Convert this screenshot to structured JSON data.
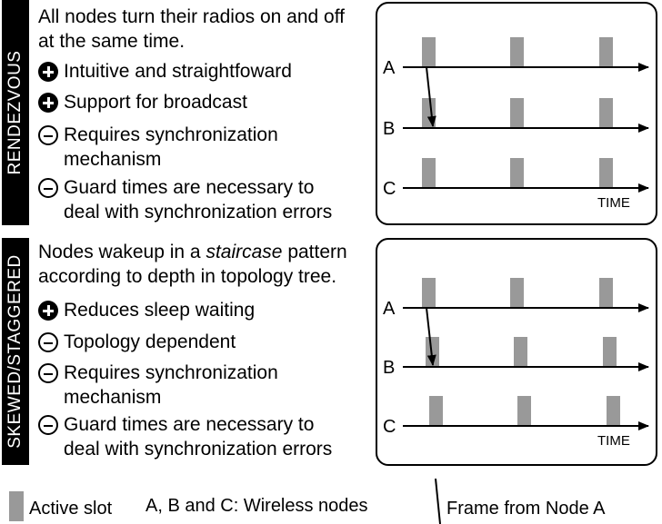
{
  "sections": [
    {
      "title": "RENDEZVOUS",
      "description": [
        "All nodes turn their radios on and off",
        "at the same time."
      ],
      "points": [
        {
          "sign": "plus",
          "lines": [
            "Intuitive and straightfoward"
          ]
        },
        {
          "sign": "plus",
          "lines": [
            "Support for broadcast"
          ]
        },
        {
          "sign": "minus",
          "lines": [
            "Requires synchronization",
            "mechanism"
          ]
        },
        {
          "sign": "minus",
          "lines": [
            "Guard times are necessary to",
            "deal with synchronization errors"
          ]
        }
      ],
      "diagram": {
        "nodes": [
          {
            "label": "A",
            "slot_offset": 0
          },
          {
            "label": "B",
            "slot_offset": 0
          },
          {
            "label": "C",
            "slot_offset": 0
          }
        ],
        "time_label": "TIME",
        "slots_per_node": 3
      }
    },
    {
      "title": "SKEWED/STAGGERED",
      "description": [
        "Nodes wakeup in a |staircase| pattern",
        "according to depth in topology tree."
      ],
      "points": [
        {
          "sign": "plus",
          "lines": [
            "Reduces sleep waiting"
          ]
        },
        {
          "sign": "minus",
          "lines": [
            "Topology dependent"
          ]
        },
        {
          "sign": "minus",
          "lines": [
            "Requires synchronization",
            "mechanism"
          ]
        },
        {
          "sign": "minus",
          "lines": [
            "Guard times are necessary to",
            "deal with synchronization errors"
          ]
        }
      ],
      "diagram": {
        "nodes": [
          {
            "label": "A",
            "slot_offset": 0
          },
          {
            "label": "B",
            "slot_offset": 1
          },
          {
            "label": "C",
            "slot_offset": 2
          }
        ],
        "time_label": "TIME",
        "slots_per_node": 3
      }
    }
  ],
  "legend": {
    "active_slot": "Active slot",
    "nodes": "A, B and C: Wireless nodes",
    "frame": "Frame from Node A"
  },
  "colors": {
    "slot": "#999999",
    "ink": "#000000",
    "sidebar_text": "#ffffff"
  }
}
